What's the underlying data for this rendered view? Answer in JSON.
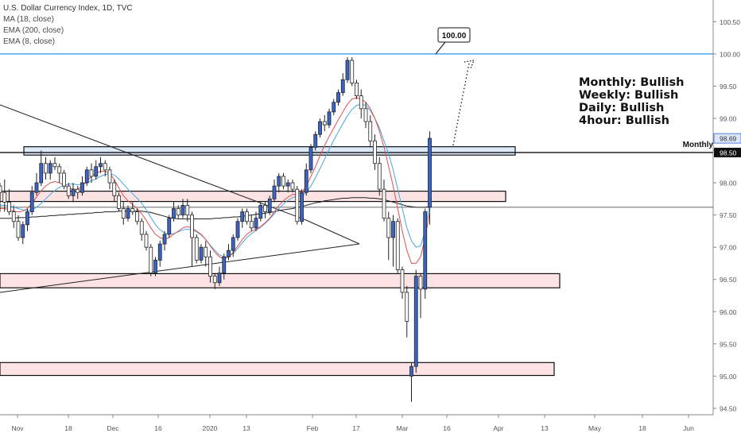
{
  "symbol_title": "U.S. Dollar Currency Index, 1D, TVC",
  "indicators": [
    "MA (18, close)",
    "EMA (200, close)",
    "EMA (8, close)"
  ],
  "annotations": {
    "callout": "100.00",
    "monthly_label": "Monthly",
    "bias": [
      "Monthly: Bullish",
      "Weekly: Bullish",
      "Daily: Bullish",
      "4hour: Bullish"
    ]
  },
  "colors": {
    "bull": "#3a64c8",
    "bear": "#ffffff",
    "outline": "#222222",
    "zone_fill": "#fde3e3",
    "monthly_zone_fill": "#dbe9f8",
    "hline_blue": "#2196f3",
    "ma18": "#e05050",
    "ema8": "#4aa3df",
    "ema200": "#222222"
  },
  "chart_data": {
    "type": "candlestick",
    "ylim": [
      94.4,
      100.8
    ],
    "y_ticks": [
      "100.50",
      "100.00",
      "99.50",
      "99.00",
      "98.50",
      "98.00",
      "97.50",
      "97.00",
      "96.50",
      "96.00",
      "95.50",
      "95.00",
      "94.50"
    ],
    "x_ticks": [
      "Nov",
      "18",
      "Dec",
      "16",
      "2020",
      "13",
      "Feb",
      "17",
      "Mar",
      "16",
      "Apr",
      "13",
      "May",
      "18",
      "Jun"
    ],
    "price_labels": {
      "last": "98.69",
      "monthly": "98.50"
    },
    "horizontal_lines": [
      {
        "name": "target",
        "value": 100.0
      },
      {
        "name": "monthly",
        "value": 98.47
      },
      {
        "name": "current",
        "value": 97.62
      }
    ],
    "zones": [
      {
        "name": "monthly-zone",
        "from": 98.43,
        "to": 98.56,
        "start": "late Oct",
        "end": "early Apr"
      },
      {
        "name": "zone-1",
        "from": 97.71,
        "to": 97.87,
        "start": "late Oct",
        "end": "early Apr"
      },
      {
        "name": "zone-2",
        "from": 96.37,
        "to": 96.59,
        "start": "late Oct",
        "end": "late Apr"
      },
      {
        "name": "zone-3",
        "from": 95.01,
        "to": 95.21,
        "start": "late Oct",
        "end": "late Apr"
      }
    ],
    "candles": [
      [
        97.95,
        97.85,
        98.0,
        97.55
      ],
      [
        97.85,
        97.7,
        98.05,
        97.55
      ],
      [
        97.7,
        97.55,
        97.9,
        97.5
      ],
      [
        97.55,
        97.4,
        97.65,
        97.3
      ],
      [
        97.4,
        97.15,
        97.5,
        97.1
      ],
      [
        97.15,
        97.35,
        97.4,
        97.05
      ],
      [
        97.35,
        97.55,
        97.6,
        97.25
      ],
      [
        97.55,
        97.85,
        97.95,
        97.5
      ],
      [
        97.85,
        98.0,
        98.15,
        97.8
      ],
      [
        98.0,
        98.3,
        98.5,
        97.95
      ],
      [
        98.3,
        98.15,
        98.4,
        98.05
      ],
      [
        98.15,
        98.3,
        98.35,
        98.05
      ],
      [
        98.3,
        98.25,
        98.4,
        98.2
      ],
      [
        98.25,
        98.15,
        98.3,
        98.0
      ],
      [
        98.15,
        97.95,
        98.2,
        97.9
      ],
      [
        97.95,
        97.8,
        98.0,
        97.75
      ],
      [
        97.8,
        97.9,
        98.0,
        97.7
      ],
      [
        97.9,
        97.85,
        97.95,
        97.75
      ],
      [
        97.85,
        98.0,
        98.1,
        97.8
      ],
      [
        98.0,
        98.2,
        98.25,
        97.95
      ],
      [
        98.2,
        98.1,
        98.3,
        98.0
      ],
      [
        98.1,
        98.25,
        98.35,
        98.05
      ],
      [
        98.25,
        98.3,
        98.4,
        98.15
      ],
      [
        98.3,
        98.2,
        98.35,
        98.1
      ],
      [
        98.2,
        98.0,
        98.25,
        97.9
      ],
      [
        98.0,
        97.8,
        98.05,
        97.7
      ],
      [
        97.8,
        97.6,
        97.85,
        97.55
      ],
      [
        97.6,
        97.45,
        97.7,
        97.35
      ],
      [
        97.45,
        97.6,
        97.65,
        97.4
      ],
      [
        97.6,
        97.55,
        97.7,
        97.5
      ],
      [
        97.55,
        97.4,
        97.6,
        97.35
      ],
      [
        97.4,
        97.2,
        97.45,
        97.1
      ],
      [
        97.2,
        97.0,
        97.25,
        96.95
      ],
      [
        97.0,
        96.6,
        97.05,
        96.55
      ],
      [
        96.6,
        96.8,
        96.85,
        96.55
      ],
      [
        96.8,
        97.05,
        97.1,
        96.7
      ],
      [
        97.05,
        97.2,
        97.25,
        96.95
      ],
      [
        97.2,
        97.45,
        97.5,
        97.15
      ],
      [
        97.45,
        97.6,
        97.7,
        97.4
      ],
      [
        97.6,
        97.5,
        97.65,
        97.45
      ],
      [
        97.5,
        97.65,
        97.75,
        97.45
      ],
      [
        97.65,
        97.5,
        97.75,
        97.4
      ],
      [
        97.5,
        97.15,
        97.55,
        96.7
      ],
      [
        97.15,
        96.8,
        97.2,
        96.75
      ],
      [
        96.8,
        97.0,
        97.05,
        96.75
      ],
      [
        97.0,
        96.85,
        97.1,
        96.7
      ],
      [
        96.85,
        96.55,
        96.95,
        96.45
      ],
      [
        96.55,
        96.45,
        96.6,
        96.35
      ],
      [
        96.45,
        96.6,
        96.7,
        96.4
      ],
      [
        96.6,
        96.85,
        96.9,
        96.5
      ],
      [
        96.85,
        96.95,
        97.05,
        96.8
      ],
      [
        96.95,
        97.15,
        97.2,
        96.85
      ],
      [
        97.15,
        97.4,
        97.45,
        97.1
      ],
      [
        97.4,
        97.55,
        97.6,
        97.3
      ],
      [
        97.55,
        97.4,
        97.6,
        97.35
      ],
      [
        97.4,
        97.3,
        97.5,
        97.25
      ],
      [
        97.3,
        97.45,
        97.55,
        97.25
      ],
      [
        97.45,
        97.65,
        97.7,
        97.4
      ],
      [
        97.65,
        97.55,
        97.7,
        97.45
      ],
      [
        97.55,
        97.75,
        97.8,
        97.5
      ],
      [
        97.75,
        97.95,
        98.05,
        97.7
      ],
      [
        97.95,
        98.1,
        98.15,
        97.85
      ],
      [
        98.1,
        97.95,
        98.15,
        97.9
      ],
      [
        97.95,
        98.0,
        98.05,
        97.85
      ],
      [
        98.0,
        97.9,
        98.05,
        97.85
      ],
      [
        97.9,
        97.4,
        97.95,
        97.35
      ],
      [
        97.4,
        97.85,
        97.9,
        97.35
      ],
      [
        97.85,
        98.2,
        98.3,
        97.8
      ],
      [
        98.2,
        98.55,
        98.6,
        98.15
      ],
      [
        98.55,
        98.75,
        98.8,
        98.5
      ],
      [
        98.75,
        98.95,
        99.0,
        98.7
      ],
      [
        98.95,
        98.9,
        99.05,
        98.8
      ],
      [
        98.9,
        99.1,
        99.15,
        98.85
      ],
      [
        99.1,
        99.25,
        99.3,
        99.05
      ],
      [
        99.25,
        99.4,
        99.45,
        99.2
      ],
      [
        99.4,
        99.6,
        99.7,
        99.35
      ],
      [
        99.6,
        99.9,
        99.95,
        99.55
      ],
      [
        99.9,
        99.55,
        99.95,
        99.5
      ],
      [
        99.55,
        99.35,
        99.6,
        99.3
      ],
      [
        99.35,
        99.15,
        99.45,
        99.0
      ],
      [
        99.15,
        98.95,
        99.25,
        98.85
      ],
      [
        98.95,
        98.65,
        99.05,
        98.55
      ],
      [
        98.65,
        98.3,
        98.75,
        98.2
      ],
      [
        98.3,
        97.9,
        98.4,
        97.8
      ],
      [
        97.9,
        97.45,
        98.05,
        97.4
      ],
      [
        97.45,
        97.15,
        97.55,
        96.8
      ],
      [
        97.15,
        97.4,
        97.5,
        96.7
      ],
      [
        97.4,
        96.65,
        97.45,
        96.6
      ],
      [
        96.65,
        96.3,
        96.7,
        96.2
      ],
      [
        96.3,
        95.85,
        96.4,
        95.6
      ],
      [
        95.0,
        95.15,
        95.2,
        94.6
      ],
      [
        95.15,
        96.55,
        96.65,
        95.05
      ],
      [
        96.55,
        96.35,
        96.6,
        95.9
      ],
      [
        96.35,
        97.55,
        97.6,
        96.2
      ],
      [
        97.62,
        98.69,
        98.8,
        97.35
      ]
    ],
    "ma18": [
      97.6,
      97.6,
      97.58,
      97.56,
      97.55,
      97.56,
      97.6,
      97.68,
      97.78,
      97.88,
      97.95,
      98.0,
      98.02,
      98.0,
      97.96,
      97.92,
      97.9,
      97.9,
      97.95,
      98.03,
      98.1,
      98.15,
      98.18,
      98.18,
      98.15,
      98.05,
      97.92,
      97.8,
      97.72,
      97.66,
      97.6,
      97.52,
      97.42,
      97.3,
      97.2,
      97.15,
      97.12,
      97.15,
      97.2,
      97.25,
      97.3,
      97.32,
      97.3,
      97.25,
      97.2,
      97.12,
      97.02,
      96.92,
      96.85,
      96.82,
      96.85,
      96.92,
      97.02,
      97.12,
      97.2,
      97.25,
      97.28,
      97.32,
      97.38,
      97.45,
      97.55,
      97.65,
      97.72,
      97.78,
      97.82,
      97.82,
      97.85,
      97.95,
      98.1,
      98.25,
      98.42,
      98.58,
      98.72,
      98.85,
      98.98,
      99.1,
      99.22,
      99.3,
      99.32,
      99.3,
      99.25,
      99.15,
      99.0,
      98.8,
      98.55,
      98.25,
      97.95,
      97.6,
      97.25,
      96.95,
      96.75,
      96.75,
      96.85,
      97.15,
      97.55
    ],
    "ema8": [
      97.65,
      97.65,
      97.64,
      97.62,
      97.6,
      97.58,
      97.57,
      97.58,
      97.62,
      97.68,
      97.75,
      97.82,
      97.88,
      97.93,
      97.96,
      97.98,
      97.98,
      97.97,
      97.98,
      98.0,
      98.03,
      98.06,
      98.1,
      98.13,
      98.14,
      98.12,
      98.06,
      97.98,
      97.9,
      97.83,
      97.76,
      97.68,
      97.58,
      97.46,
      97.35,
      97.27,
      97.22,
      97.2,
      97.21,
      97.24,
      97.27,
      97.28,
      97.27,
      97.24,
      97.19,
      97.12,
      97.03,
      96.95,
      96.88,
      96.85,
      96.86,
      96.9,
      96.98,
      97.07,
      97.15,
      97.21,
      97.26,
      97.31,
      97.37,
      97.44,
      97.52,
      97.6,
      97.67,
      97.73,
      97.77,
      97.79,
      97.8,
      97.85,
      97.95,
      98.08,
      98.22,
      98.37,
      98.52,
      98.66,
      98.79,
      98.92,
      99.04,
      99.14,
      99.2,
      99.22,
      99.2,
      99.12,
      99.0,
      98.85,
      98.65,
      98.45,
      98.2,
      97.9,
      97.6,
      97.3,
      97.1,
      97.0,
      97.02,
      97.25,
      97.7
    ],
    "ema200": [
      97.45,
      97.45,
      97.45,
      97.45,
      97.46,
      97.46,
      97.46,
      97.47,
      97.47,
      97.48,
      97.48,
      97.49,
      97.49,
      97.5,
      97.5,
      97.51,
      97.51,
      97.52,
      97.52,
      97.53,
      97.53,
      97.54,
      97.54,
      97.55,
      97.55,
      97.55,
      97.56,
      97.56,
      97.56,
      97.56,
      97.56,
      97.56,
      97.55,
      97.54,
      97.52,
      97.5,
      97.48,
      97.46,
      97.45,
      97.44,
      97.44,
      97.44,
      97.44,
      97.44,
      97.44,
      97.44,
      97.44,
      97.45,
      97.45,
      97.46,
      97.46,
      97.47,
      97.47,
      97.48,
      97.49,
      97.5,
      97.51,
      97.52,
      97.53,
      97.54,
      97.55,
      97.57,
      97.58,
      97.59,
      97.6,
      97.62,
      97.63,
      97.65,
      97.67,
      97.69,
      97.7,
      97.72,
      97.73,
      97.74,
      97.75,
      97.76,
      97.76,
      97.77,
      97.77,
      97.77,
      97.77,
      97.76,
      97.76,
      97.75,
      97.74,
      97.72,
      97.7,
      97.68,
      97.66,
      97.64,
      97.63,
      97.62,
      97.62,
      97.62,
      97.63
    ]
  }
}
